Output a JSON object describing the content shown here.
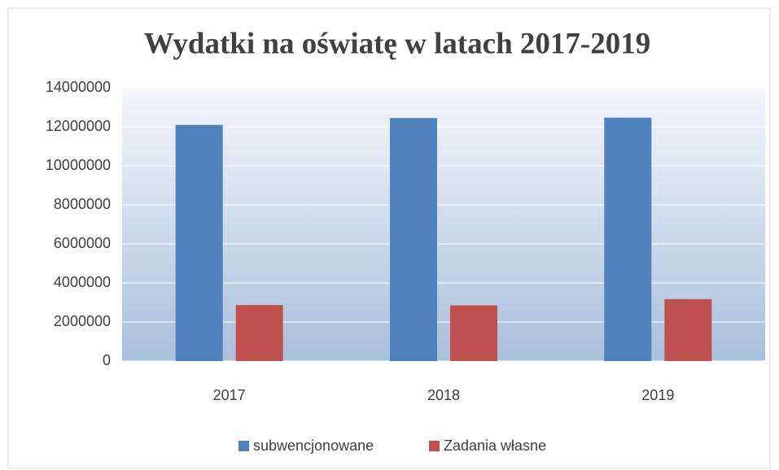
{
  "chart_data": {
    "type": "bar",
    "title": "Wydatki na oświatę w latach 2017-2019",
    "categories": [
      "2017",
      "2018",
      "2019"
    ],
    "series": [
      {
        "name": "subwencjonowane",
        "color": "#4f81bd",
        "values": [
          12100000,
          12450000,
          12470000
        ]
      },
      {
        "name": "Zadania własne",
        "color": "#c0504d",
        "values": [
          2870000,
          2850000,
          3170000
        ]
      }
    ],
    "ylim": [
      0,
      14000000
    ],
    "yticks": [
      0,
      2000000,
      4000000,
      6000000,
      8000000,
      10000000,
      12000000,
      14000000
    ],
    "grid": true,
    "legend": "bottom"
  }
}
